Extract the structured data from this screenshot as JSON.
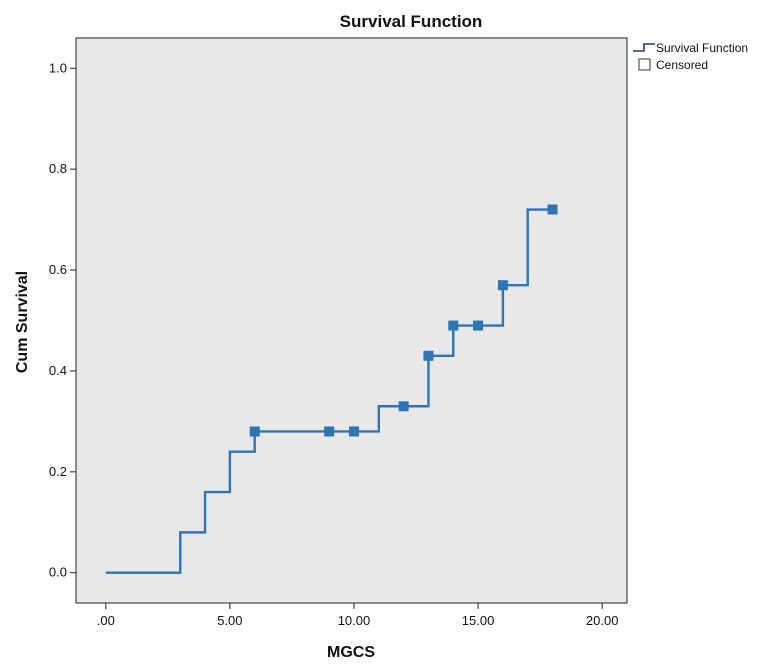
{
  "chart_data": {
    "type": "line",
    "title": "Survival Function",
    "xlabel": "MGCS",
    "ylabel": "Cum Survival",
    "xlim": [
      -1.2,
      21
    ],
    "ylim": [
      -0.06,
      1.06
    ],
    "xticks": [
      0,
      5,
      10,
      15,
      20
    ],
    "xtick_labels": [
      ".00",
      "5.00",
      "10.00",
      "15.00",
      "20.00"
    ],
    "yticks": [
      0,
      0.2,
      0.4,
      0.6,
      0.8,
      1.0
    ],
    "ytick_labels": [
      "0.0",
      "0.2",
      "0.4",
      "0.6",
      "0.8",
      "1.0"
    ],
    "grid": false,
    "legend_position": "top-right",
    "colors": {
      "line": "#2e75b6",
      "plot_bg": "#e8e8e8",
      "legend_line": "#1f3a7a"
    },
    "series": [
      {
        "name": "Survival Function",
        "step_points": [
          {
            "x": 0,
            "y": 0
          },
          {
            "x": 3,
            "y": 0.08
          },
          {
            "x": 4,
            "y": 0.16
          },
          {
            "x": 5,
            "y": 0.24
          },
          {
            "x": 6,
            "y": 0.28
          },
          {
            "x": 11,
            "y": 0.33
          },
          {
            "x": 13,
            "y": 0.43
          },
          {
            "x": 14,
            "y": 0.49
          },
          {
            "x": 16,
            "y": 0.57
          },
          {
            "x": 17,
            "y": 0.72
          }
        ],
        "end_x": 18
      },
      {
        "name": "Censored",
        "points": [
          {
            "x": 6,
            "y": 0.28
          },
          {
            "x": 9,
            "y": 0.28
          },
          {
            "x": 10,
            "y": 0.28
          },
          {
            "x": 12,
            "y": 0.33
          },
          {
            "x": 13,
            "y": 0.43
          },
          {
            "x": 14,
            "y": 0.49
          },
          {
            "x": 15,
            "y": 0.49
          },
          {
            "x": 16,
            "y": 0.57
          },
          {
            "x": 18,
            "y": 0.72
          }
        ]
      }
    ]
  }
}
